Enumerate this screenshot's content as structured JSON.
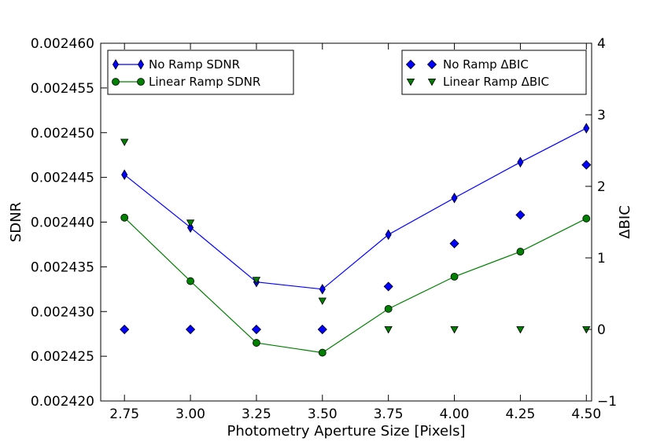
{
  "chart_data": {
    "type": "line",
    "title": "",
    "xlabel": "Photometry Aperture Size [Pixels]",
    "ylabel_left": "SDNR",
    "ylabel_right": "ΔBIC",
    "x": [
      2.75,
      3.0,
      3.25,
      3.5,
      3.75,
      4.0,
      4.25,
      4.5
    ],
    "xlim": [
      2.66,
      4.52
    ],
    "ylim_left": [
      0.00242,
      0.00246
    ],
    "ylim_right": [
      -1,
      4
    ],
    "x_ticks": [
      2.75,
      3.0,
      3.25,
      3.5,
      3.75,
      4.0,
      4.25,
      4.5
    ],
    "x_tick_labels": [
      "2.75",
      "3.00",
      "3.25",
      "3.50",
      "3.75",
      "4.00",
      "4.25",
      "4.50"
    ],
    "y_left_ticks": [
      0.00242,
      0.002425,
      0.00243,
      0.002435,
      0.00244,
      0.002445,
      0.00245,
      0.002455,
      0.00246
    ],
    "y_left_tick_labels": [
      "0.002420",
      "0.002425",
      "0.002430",
      "0.002435",
      "0.002440",
      "0.002445",
      "0.002450",
      "0.002455",
      "0.002460"
    ],
    "y_right_ticks": [
      -1,
      0,
      1,
      2,
      3,
      4
    ],
    "y_right_tick_labels": [
      "−1",
      "0",
      "1",
      "2",
      "3",
      "4"
    ],
    "series": [
      {
        "name": "No Ramp SDNR",
        "axis": "left",
        "kind": "line",
        "marker": "thin-diamond",
        "color": "#0000ff",
        "values": [
          0.0024453,
          0.0024394,
          0.0024333,
          0.0024325,
          0.0024386,
          0.0024427,
          0.0024467,
          0.0024505
        ]
      },
      {
        "name": "Linear Ramp SDNR",
        "axis": "left",
        "kind": "line",
        "marker": "circle",
        "color": "#008000",
        "values": [
          0.0024405,
          0.0024334,
          0.0024265,
          0.0024254,
          0.0024303,
          0.0024339,
          0.0024367,
          0.0024404
        ]
      },
      {
        "name": "No Ramp ΔBIC",
        "axis": "right",
        "kind": "scatter",
        "marker": "diamond",
        "color": "#0000ff",
        "values": [
          0,
          0,
          0,
          0,
          0.6,
          1.2,
          1.6,
          2.3
        ]
      },
      {
        "name": "Linear Ramp ΔBIC",
        "axis": "right",
        "kind": "scatter",
        "marker": "triangle-down",
        "color": "#008000",
        "values": [
          2.62,
          1.49,
          0.69,
          0.4,
          0,
          0,
          0,
          0
        ]
      }
    ],
    "legends": [
      {
        "location": "upper-left",
        "entries": [
          "No Ramp SDNR",
          "Linear Ramp SDNR"
        ]
      },
      {
        "location": "upper-right",
        "entries": [
          "No Ramp ΔBIC",
          "Linear Ramp ΔBIC"
        ]
      }
    ],
    "grid": false
  }
}
